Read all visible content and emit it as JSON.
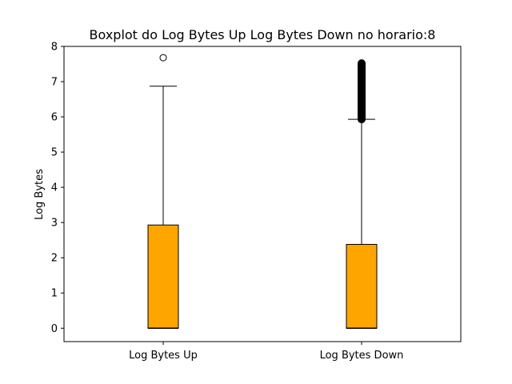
{
  "chart_data": {
    "type": "boxplot",
    "title": "Boxplot do Log Bytes Up  Log Bytes Down no horario:8",
    "xlabel": "",
    "ylabel": "Log Bytes",
    "ylim": [
      -0.38,
      8.0
    ],
    "yticks": [
      0,
      1,
      2,
      3,
      4,
      5,
      6,
      7,
      8
    ],
    "categories": [
      "Log Bytes Up",
      "Log Bytes Down"
    ],
    "box_color": "#ffa500",
    "median_color": "#000000",
    "boxes": [
      {
        "name": "Log Bytes Up",
        "whisker_low": 0.0,
        "q1": 0.0,
        "median": 0.0,
        "q3": 2.93,
        "whisker_high": 6.87,
        "outliers": [
          7.68
        ]
      },
      {
        "name": "Log Bytes Down",
        "whisker_low": 0.0,
        "q1": 0.0,
        "median": 0.0,
        "q3": 2.38,
        "whisker_high": 5.93,
        "outlier_range": [
          5.93,
          7.52
        ]
      }
    ],
    "grid": false,
    "legend": "none"
  }
}
